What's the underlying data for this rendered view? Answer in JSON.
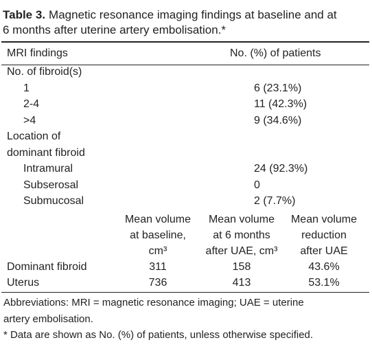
{
  "title": {
    "label": "Table 3.",
    "lines": [
      "Magnetic resonance imaging findings at baseline and at",
      "6 months after uterine artery embolisation.*"
    ]
  },
  "table": {
    "header": [
      "MRI findings",
      "No. (%) of patients"
    ],
    "sections": [
      {
        "heading": [
          "No. of fibroid(s)"
        ],
        "rows": [
          [
            "1",
            "6 (23.1%)"
          ],
          [
            "2-4",
            "11 (42.3%)"
          ],
          [
            ">4",
            "9 (34.6%)"
          ]
        ]
      },
      {
        "heading": [
          "Location of",
          "dominant fibroid"
        ],
        "rows": [
          [
            "Intramural",
            "24 (92.3%)"
          ],
          [
            "Subserosal",
            "0"
          ],
          [
            "Submucosal",
            "2 (7.7%)"
          ]
        ]
      }
    ],
    "volume": {
      "columns": [
        [
          "Mean volume",
          "at baseline,",
          "cm³"
        ],
        [
          "Mean volume",
          "at 6 months",
          "after UAE, cm³"
        ],
        [
          "Mean volume",
          "reduction",
          "after UAE"
        ]
      ],
      "rows": [
        [
          "Dominant fibroid",
          "311",
          "158",
          "43.6%"
        ],
        [
          "Uterus",
          "736",
          "413",
          "53.1%"
        ]
      ]
    }
  },
  "footnotes": [
    [
      "Abbreviations: MRI = magnetic resonance imaging; UAE = uterine",
      "artery embolisation."
    ],
    [
      "* Data are shown as No. (%) of patients, unless otherwise specified."
    ]
  ]
}
